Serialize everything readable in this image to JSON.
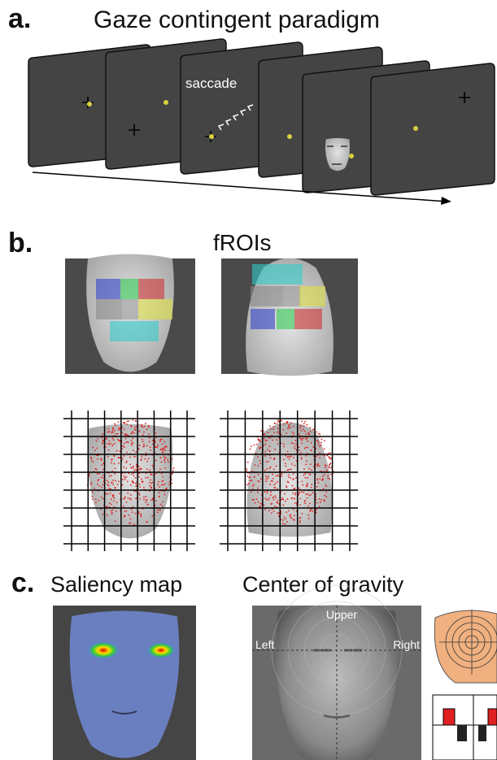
{
  "panel_a": {
    "label": "a.",
    "title": "Gaze contingent paradigm",
    "annotation": "saccade"
  },
  "panel_b": {
    "label": "b.",
    "title": "fROIs"
  },
  "panel_c": {
    "label": "c.",
    "saliency_title": "Saliency map",
    "gravity_title": "Center of gravity",
    "gravity_labels": {
      "upper": "Upper",
      "left": "Left",
      "right": "Right"
    }
  }
}
